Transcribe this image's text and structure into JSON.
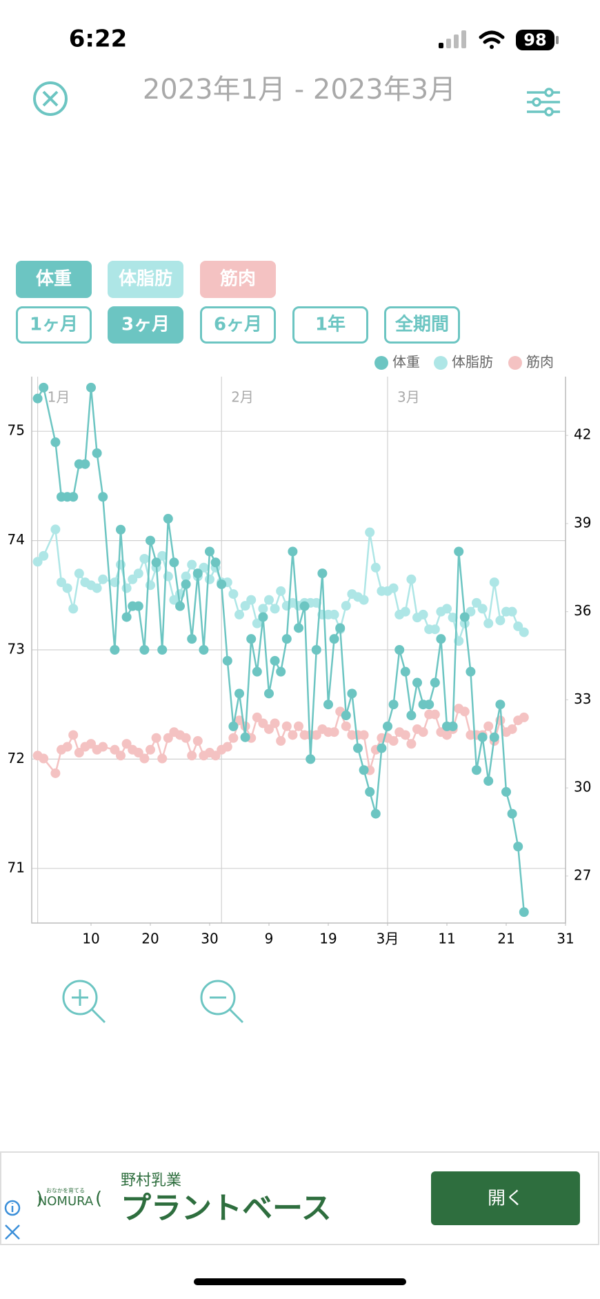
{
  "status": {
    "time": "6:22",
    "battery": "98"
  },
  "header": {
    "title": "2023年1月 - 2023年3月"
  },
  "metric_buttons": [
    "体重",
    "体脂肪",
    "筋肉"
  ],
  "range_buttons": [
    "1ヶ月",
    "3ヶ月",
    "6ヶ月",
    "1年",
    "全期間"
  ],
  "active_range": 1,
  "chart_data": {
    "type": "line",
    "x": [
      1,
      2,
      4,
      5,
      6,
      7,
      8,
      9,
      10,
      11,
      12,
      14,
      15,
      16,
      17,
      18,
      19,
      20,
      21,
      22,
      23,
      24,
      25,
      26,
      27,
      28,
      29,
      30,
      31,
      32,
      33,
      34,
      35,
      36,
      37,
      38,
      39,
      40,
      41,
      42,
      43,
      44,
      45,
      46,
      47,
      48,
      49,
      50,
      51,
      52,
      53,
      54,
      55,
      56,
      57,
      58,
      59,
      60,
      61,
      62,
      63,
      64,
      65,
      66,
      67,
      68,
      69,
      70,
      71,
      72,
      73,
      74,
      75,
      76,
      77,
      78,
      79,
      80,
      81,
      82,
      83
    ],
    "series": [
      {
        "name": "体重",
        "color": "#6cc5c2",
        "values": [
          75.3,
          75.4,
          74.9,
          74.4,
          74.4,
          74.4,
          74.7,
          74.7,
          75.4,
          74.8,
          74.4,
          73.0,
          74.1,
          73.3,
          73.4,
          73.4,
          73.0,
          74.0,
          73.8,
          73.0,
          74.2,
          73.8,
          73.4,
          73.6,
          73.1,
          73.7,
          73.0,
          73.9,
          73.8,
          73.6,
          72.9,
          72.3,
          72.6,
          72.2,
          73.1,
          72.8,
          73.3,
          72.6,
          72.9,
          72.8,
          73.1,
          73.9,
          73.2,
          73.4,
          72.0,
          73.0,
          73.7,
          72.5,
          73.1,
          73.2,
          72.4,
          72.6,
          72.1,
          71.9,
          71.7,
          71.5,
          72.1,
          72.3,
          72.5,
          73.0,
          72.8,
          72.4,
          72.7,
          72.5,
          72.5,
          72.7,
          73.1,
          72.3,
          72.3,
          73.9,
          73.3,
          72.8,
          71.9,
          72.2,
          71.8,
          72.2,
          72.5,
          71.7,
          71.5,
          71.2,
          70.6
        ]
      },
      {
        "name": "体脂肪",
        "color": "#aee6e6",
        "axis": "y2",
        "values": [
          37.7,
          37.9,
          38.8,
          37.0,
          36.8,
          36.1,
          37.3,
          37.0,
          36.9,
          36.8,
          37.1,
          37.0,
          37.6,
          36.8,
          37.1,
          37.3,
          37.8,
          36.9,
          37.5,
          37.9,
          37.2,
          36.4,
          36.6,
          37.2,
          37.6,
          37.2,
          37.5,
          37.1,
          37.5,
          37.0,
          37.0,
          36.6,
          35.9,
          36.2,
          36.4,
          35.6,
          36.1,
          36.4,
          36.1,
          36.7,
          36.2,
          36.3,
          36.2,
          36.3,
          36.3,
          36.3,
          35.9,
          35.9,
          35.9,
          35.4,
          36.2,
          36.6,
          36.5,
          36.4,
          38.7,
          37.5,
          36.7,
          36.7,
          36.8,
          35.9,
          36.0,
          37.1,
          35.8,
          35.9,
          35.4,
          35.4,
          36.0,
          36.1,
          35.8,
          35.0,
          35.6,
          36.0,
          36.3,
          36.1,
          35.6,
          37.0,
          35.7,
          36.0,
          36.0,
          35.5,
          35.3
        ]
      },
      {
        "name": "筋肉",
        "color": "#f4c2c2",
        "axis": "y2",
        "values": [
          31.1,
          31.0,
          30.5,
          31.3,
          31.4,
          31.8,
          31.2,
          31.4,
          31.5,
          31.3,
          31.4,
          31.3,
          31.1,
          31.5,
          31.3,
          31.2,
          31.0,
          31.3,
          31.7,
          31.0,
          31.7,
          31.9,
          31.8,
          31.7,
          31.1,
          31.6,
          31.1,
          31.2,
          31.1,
          31.3,
          31.4,
          31.7,
          32.3,
          32.1,
          31.7,
          32.4,
          32.2,
          32.0,
          32.2,
          31.6,
          32.1,
          31.8,
          32.1,
          31.8,
          31.8,
          31.8,
          32.0,
          31.9,
          31.9,
          32.6,
          32.1,
          31.8,
          31.8,
          31.8,
          30.6,
          31.3,
          31.7,
          31.7,
          31.6,
          31.9,
          31.8,
          31.5,
          32.0,
          31.9,
          32.5,
          32.5,
          31.9,
          31.8,
          32.0,
          32.7,
          32.6,
          31.8,
          31.8,
          31.8,
          32.1,
          31.6,
          32.3,
          31.9,
          32.0,
          32.3,
          32.4
        ]
      }
    ],
    "xlim": [
      0,
      90
    ],
    "xticks": [
      10,
      20,
      30,
      {
        "value": 40,
        "label": "9"
      },
      {
        "value": 50,
        "label": "19"
      },
      {
        "value": 60,
        "label": "3月"
      },
      {
        "value": 70,
        "label": "11"
      },
      {
        "value": 80,
        "label": "21"
      },
      {
        "value": 90,
        "label": "31"
      }
    ],
    "month_markers": [
      {
        "value": 1,
        "label": "1月"
      },
      {
        "value": 32,
        "label": "2月"
      },
      {
        "value": 60,
        "label": "3月"
      }
    ],
    "ylim": [
      70.5,
      75.5
    ],
    "yticks": [
      71,
      72,
      73,
      74,
      75
    ],
    "y2lim": [
      25.4,
      44
    ],
    "y2ticks": [
      27,
      30,
      33,
      36,
      39,
      42
    ],
    "grid": true,
    "legend": "top-right"
  },
  "ad": {
    "tagline": "おなかを育てる",
    "logo": "NOMURA",
    "sponsor": "野村乳業",
    "headline": "プラントベース",
    "button": "開く"
  }
}
